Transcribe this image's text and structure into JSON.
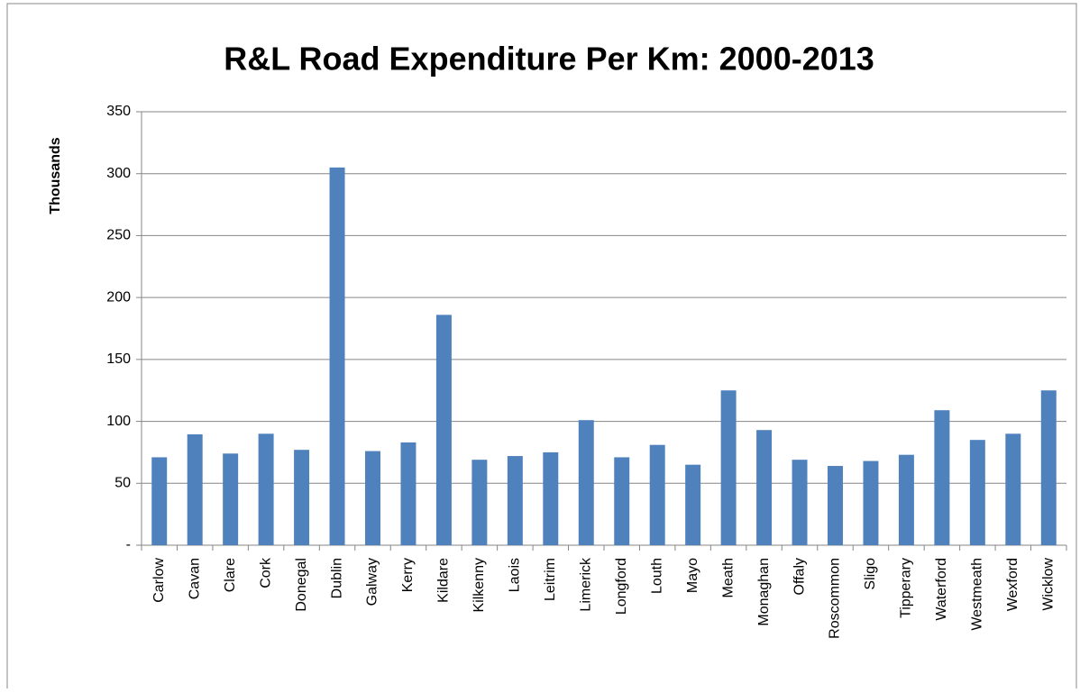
{
  "chart_data": {
    "type": "bar",
    "title": "R&L Road Expenditure Per Km: 2000-2013",
    "ylabel": "Thousands",
    "categories": [
      "Carlow",
      "Cavan",
      "Clare",
      "Cork",
      "Donegal",
      "Dublin",
      "Galway",
      "Kerry",
      "Kildare",
      "Kilkenny",
      "Laois",
      "Leitrim",
      "Limerick",
      "Longford",
      "Louth",
      "Mayo",
      "Meath",
      "Monaghan",
      "Offaly",
      "Roscommon",
      "Sligo",
      "Tipperary",
      "Waterford",
      "Westmeath",
      "Wexford",
      "Wicklow"
    ],
    "values": [
      71,
      89.5,
      74,
      90,
      77,
      305,
      76,
      83,
      186,
      69,
      72,
      75,
      101,
      71,
      81,
      65,
      125,
      93,
      69,
      64,
      68,
      73,
      109,
      85,
      90,
      125
    ],
    "color": "#4f81bd",
    "ylim": [
      0,
      350
    ],
    "yticks": [
      {
        "value": 0,
        "label": "-"
      },
      50,
      100,
      150,
      200,
      250,
      300,
      350
    ],
    "grid": true
  }
}
